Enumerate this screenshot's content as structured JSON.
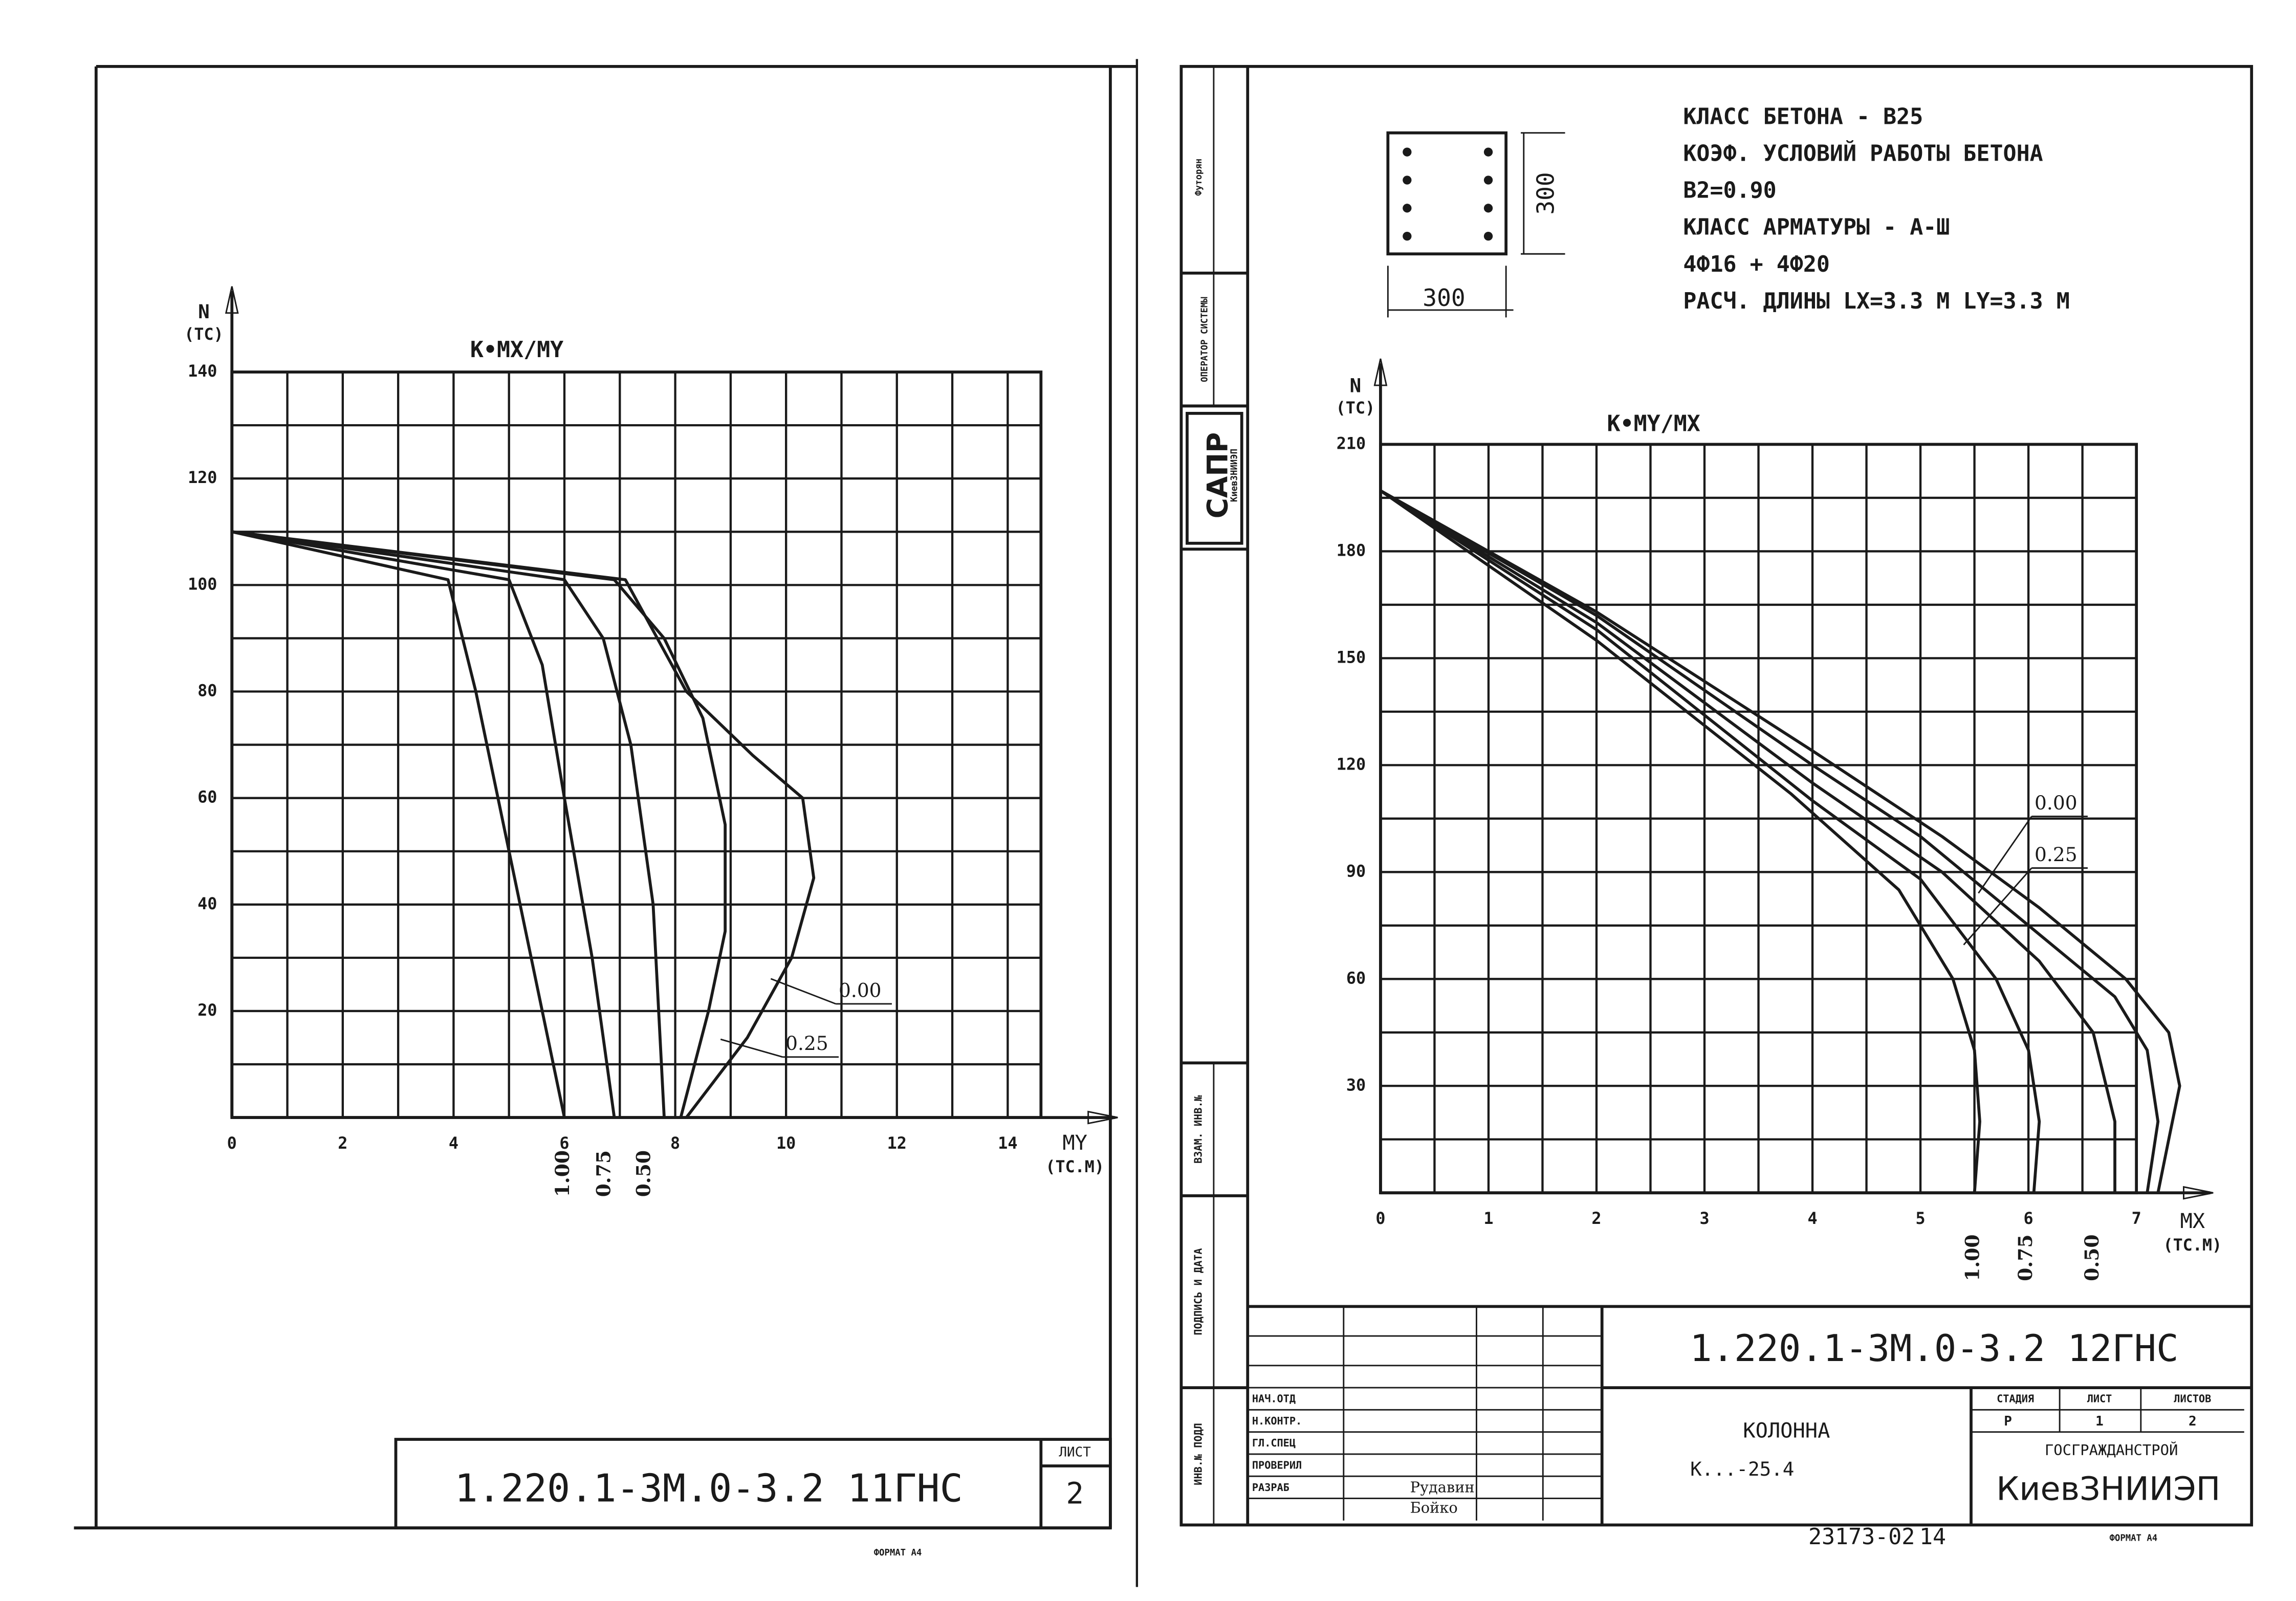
{
  "chart_data": [
    {
      "type": "line",
      "title": "K•MX/MY",
      "y_label": "N",
      "y_unit": "(TC)",
      "x_label": "MY",
      "x_unit": "(TC.M)",
      "xlim": [
        0,
        14.6
      ],
      "ylim": [
        0,
        140
      ],
      "xticks": [
        0,
        2,
        4,
        6,
        8,
        10,
        12,
        14
      ],
      "yticks": [
        20,
        40,
        60,
        80,
        100,
        120,
        140
      ],
      "xminorticks": [
        1,
        3,
        5,
        7,
        9,
        11,
        13
      ],
      "yminorticks": [
        10,
        30,
        50,
        70,
        90,
        110,
        130
      ],
      "grid": true,
      "color": "#1a1a1a",
      "series": [
        {
          "name": "0.00",
          "x": [
            0,
            7.1,
            8.2,
            9.4,
            10.3,
            10.5,
            10.1,
            9.3,
            8.2
          ],
          "values": [
            110,
            101,
            80,
            68,
            60,
            45,
            30,
            15,
            0
          ]
        },
        {
          "name": "0.25",
          "x": [
            0,
            6.9,
            7.8,
            8.5,
            8.9,
            8.9,
            8.6,
            8.1
          ],
          "values": [
            110,
            101,
            90,
            75,
            55,
            35,
            20,
            0
          ]
        },
        {
          "name": "0.50",
          "x": [
            0,
            6,
            6.7,
            7.2,
            7.6,
            7.8
          ],
          "values": [
            110,
            101,
            90,
            70,
            40,
            0
          ]
        },
        {
          "name": "0.75",
          "x": [
            0,
            5,
            5.6,
            6,
            6.5,
            6.9
          ],
          "values": [
            110,
            101,
            85,
            60,
            30,
            0
          ]
        },
        {
          "name": "1.00",
          "x": [
            0,
            3.9,
            4.4,
            5,
            5.6,
            6
          ],
          "values": [
            110,
            101,
            80,
            50,
            20,
            0
          ]
        }
      ]
    },
    {
      "type": "line",
      "title": "K•MY/MX",
      "y_label": "N",
      "y_unit": "(TC)",
      "x_label": "MX",
      "x_unit": "(TC.M)",
      "xlim": [
        0,
        7
      ],
      "ylim": [
        0,
        210
      ],
      "xticks": [
        0,
        1,
        2,
        3,
        4,
        5,
        6,
        7
      ],
      "yticks": [
        30,
        60,
        90,
        120,
        150,
        180,
        210
      ],
      "xminorticks": [
        0.5,
        1.5,
        2.5,
        3.5,
        4.5,
        5.5,
        6.5
      ],
      "yminorticks": [
        15,
        45,
        75,
        105,
        135,
        165,
        195
      ],
      "grid": true,
      "color": "#1a1a1a",
      "series": [
        {
          "name": "0.00",
          "x": [
            0,
            2,
            4,
            5.2,
            6.1,
            6.9,
            7.3,
            7.4,
            7.3,
            7.2
          ],
          "values": [
            197,
            163,
            124,
            100,
            80,
            60,
            45,
            30,
            15,
            0
          ]
        },
        {
          "name": "0.25",
          "x": [
            0,
            2,
            4,
            5,
            6,
            6.8,
            7.1,
            7.2,
            7.1
          ],
          "values": [
            197,
            162,
            120,
            100,
            75,
            55,
            40,
            20,
            0
          ]
        },
        {
          "name": "0.50",
          "x": [
            0,
            2,
            4,
            5.2,
            6.1,
            6.6,
            6.8,
            6.8
          ],
          "values": [
            197,
            160,
            115,
            90,
            65,
            45,
            20,
            0
          ]
        },
        {
          "name": "0.75",
          "x": [
            0,
            2,
            4,
            5,
            5.7,
            6,
            6.1,
            6.05
          ],
          "values": [
            197,
            158,
            110,
            88,
            60,
            40,
            20,
            0
          ]
        },
        {
          "name": "1.00",
          "x": [
            0,
            2,
            3.8,
            4.8,
            5.3,
            5.5,
            5.55,
            5.5
          ],
          "values": [
            197,
            155,
            112,
            85,
            60,
            40,
            20,
            0
          ]
        }
      ]
    }
  ],
  "section": {
    "width": "300",
    "height": "300"
  },
  "notes": [
    "КЛАСС БЕТОНА - В25",
    "КОЭФ. УСЛОВИЙ РАБОТЫ БЕТОНА",
    "В2=0.90",
    "КЛАСС АРМАТУРЫ - А-Ш",
    "4Ф16 + 4Ф20",
    "РАСЧ. ДЛИНЫ  LX=3.3 М  LY=3.3 М"
  ],
  "left_stamp": {
    "code": "1.220.1-3М.0-3.2 11ГНС",
    "sheet_label": "ЛИСТ",
    "sheet": "2",
    "format": "ФОРМАТ А4"
  },
  "right_stamp": {
    "code": "1.220.1-3М.0-3.2 12ГНС",
    "object": "КОЛОННА",
    "mark": "К...-25.4",
    "stage_label": "СТАДИЯ",
    "sheet_label": "ЛИСТ",
    "sheets_label": "ЛИСТОВ",
    "stage": "Р",
    "sheet": "1",
    "sheets": "2",
    "org1": "ГОСГРАЖДАНСТРОЙ",
    "org2": "КиевЗНИИЭП",
    "roles": [
      "НАЧ.ОТД",
      "Н.КОНТР.",
      "ГЛ.СПЕЦ",
      "ПРОВЕРИЛ",
      "РАЗРАБ"
    ],
    "checked_by": "Рудавин",
    "developed_by": "Бойко",
    "order": "23173-02",
    "page": "14",
    "format": "ФОРМАТ А4"
  },
  "side": {
    "sapr": "САПР",
    "org": "КиевЗНИИЭП",
    "operator": "ОПЕРАТОР СИСТЕМЫ",
    "author": "Футорян",
    "inv_replace": "ВЗАМ. ИНВ.№",
    "signature": "ПОДПИСЬ И ДАТА",
    "inv_orig": "ИНВ.№ ПОДЛ"
  }
}
